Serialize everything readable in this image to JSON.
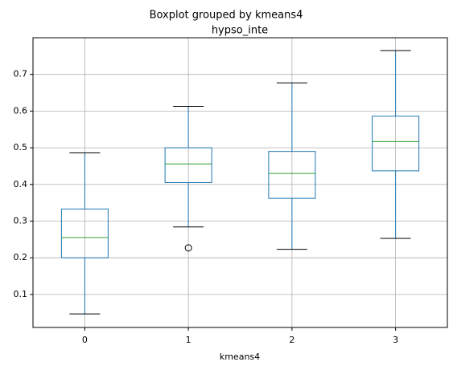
{
  "chart_data": {
    "type": "box",
    "title": "Boxplot grouped by kmeans4",
    "subtitle": "hypso_inte",
    "xlabel": "kmeans4",
    "categories": [
      "0",
      "1",
      "2",
      "3"
    ],
    "boxes": [
      {
        "min": 0.047,
        "q1": 0.2,
        "median": 0.255,
        "q3": 0.333,
        "max": 0.486,
        "fliers": []
      },
      {
        "min": 0.284,
        "q1": 0.405,
        "median": 0.456,
        "q3": 0.5,
        "max": 0.613,
        "fliers": [
          0.227
        ]
      },
      {
        "min": 0.223,
        "q1": 0.362,
        "median": 0.43,
        "q3": 0.49,
        "max": 0.677,
        "fliers": []
      },
      {
        "min": 0.253,
        "q1": 0.437,
        "median": 0.517,
        "q3": 0.586,
        "max": 0.765,
        "fliers": []
      }
    ],
    "box_color": "#1f77b4",
    "median_color": "#2ca02c",
    "whisker_color": "#000000",
    "ylim": [
      0.01,
      0.8
    ],
    "yticks": [
      0.1,
      0.2,
      0.3,
      0.4,
      0.5,
      0.6,
      0.7
    ],
    "grid": true
  }
}
